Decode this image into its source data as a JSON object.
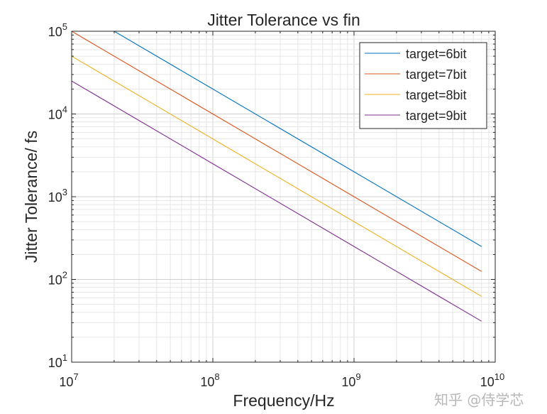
{
  "chart_data": {
    "type": "line",
    "title": "Jitter Tolerance vs fin",
    "xlabel": "Frequency/Hz",
    "ylabel": "Jitter Tolerance/ fs",
    "xscale": "log",
    "yscale": "log",
    "xlim": [
      10000000.0,
      10000000000.0
    ],
    "ylim": [
      10,
      100000
    ],
    "grid": true,
    "minor_grid": true,
    "legend_position": "top-right",
    "x_ticks": [
      {
        "v": 10000000.0,
        "base": "10",
        "exp": "7"
      },
      {
        "v": 100000000.0,
        "base": "10",
        "exp": "8"
      },
      {
        "v": 1000000000.0,
        "base": "10",
        "exp": "9"
      },
      {
        "v": 10000000000.0,
        "base": "10",
        "exp": "10"
      }
    ],
    "y_ticks": [
      {
        "v": 10,
        "base": "10",
        "exp": "1"
      },
      {
        "v": 100,
        "base": "10",
        "exp": "2"
      },
      {
        "v": 1000,
        "base": "10",
        "exp": "3"
      },
      {
        "v": 10000,
        "base": "10",
        "exp": "4"
      },
      {
        "v": 100000,
        "base": "10",
        "exp": "5"
      }
    ],
    "x": [
      10000000.0,
      100000000.0,
      1000000000.0,
      8000000000.0
    ],
    "series": [
      {
        "name": "target=6bit",
        "color": "#0072BD",
        "values": [
          200000,
          20000,
          2000,
          250
        ]
      },
      {
        "name": "target=7bit",
        "color": "#D95319",
        "values": [
          100000,
          10000,
          1000,
          125
        ]
      },
      {
        "name": "target=8bit",
        "color": "#EDB120",
        "values": [
          50000,
          5000,
          500,
          62.5
        ]
      },
      {
        "name": "target=9bit",
        "color": "#7E2F8E",
        "values": [
          25000,
          2500,
          250,
          31.25
        ]
      }
    ]
  },
  "watermark": "知乎 @侍学芯"
}
